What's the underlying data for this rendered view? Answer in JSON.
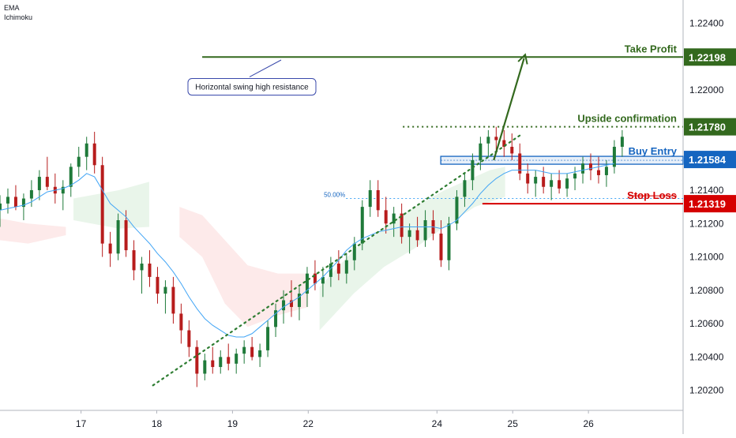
{
  "indicators": [
    "EMA",
    "Ichimoku"
  ],
  "colors": {
    "up": "#26a69a",
    "up_body": "#1f7a3a",
    "down": "#c2185b",
    "down_body": "#b71c1c",
    "ema": "#42a5f5",
    "cloud_green": "#4caf50",
    "cloud_red": "#ef5350",
    "target": "#33691e",
    "entry": "#1565c0",
    "stop": "#d50000",
    "trend": "#2e7d32"
  },
  "chart_data": {
    "type": "candlestick",
    "x_tick_labels": [
      {
        "label": "17",
        "x": 17
      },
      {
        "label": "18",
        "x": 18
      },
      {
        "label": "19",
        "x": 19
      },
      {
        "label": "22",
        "x": 20
      },
      {
        "label": "24",
        "x": 21.7
      },
      {
        "label": "25",
        "x": 22.7
      },
      {
        "label": "26",
        "x": 23.7
      }
    ],
    "y_tick_labels": [
      "1.20200",
      "1.20400",
      "1.20600",
      "1.20800",
      "1.21000",
      "1.21200",
      "1.21400",
      "1.22000",
      "1.22400"
    ],
    "y_ticks": [
      1.202,
      1.204,
      1.206,
      1.208,
      1.21,
      1.212,
      1.214,
      1.22,
      1.224
    ],
    "ylim": [
      1.2008,
      1.2254
    ],
    "xlim": [
      15.93,
      24.95
    ],
    "levels": [
      {
        "label": "Take Profit",
        "value": 1.22198,
        "price_label": "1.22198",
        "style": "solid",
        "x_from": 18.6,
        "x_to": 24.95
      },
      {
        "label": "Upside confirmation",
        "value": 1.2178,
        "price_label": "1.21780",
        "style": "dotted",
        "x_from": 21.25,
        "x_to": 24.95
      },
      {
        "label": "Buy Entry",
        "value": 1.21584,
        "price_label": "1.21584",
        "style": "zone",
        "x_from": 21.75,
        "x_to": 24.95
      },
      {
        "label": "Stop Loss",
        "value": 1.21319,
        "price_label": "1.21319",
        "style": "solid",
        "x_from": 22.3,
        "x_to": 24.95
      }
    ],
    "fib_label": "50.00%",
    "fib_level": 1.2135,
    "annotation": "Horizontal swing high resistance",
    "trendline": {
      "from": [
        17.95,
        1.2023
      ],
      "to": [
        22.8,
        1.2173
      ]
    },
    "ohlc": [
      [
        1.2128,
        1.2137,
        1.2118,
        1.2132
      ],
      [
        1.2132,
        1.2141,
        1.2126,
        1.2136
      ],
      [
        1.2136,
        1.2143,
        1.2128,
        1.213
      ],
      [
        1.213,
        1.2138,
        1.2122,
        1.2135
      ],
      [
        1.2135,
        1.2146,
        1.213,
        1.214
      ],
      [
        1.214,
        1.2152,
        1.2134,
        1.2148
      ],
      [
        1.2148,
        1.216,
        1.214,
        1.2142
      ],
      [
        1.2142,
        1.215,
        1.2132,
        1.2138
      ],
      [
        1.2138,
        1.2146,
        1.2128,
        1.2142
      ],
      [
        1.2142,
        1.2156,
        1.2136,
        1.2154
      ],
      [
        1.2154,
        1.2166,
        1.2148,
        1.216
      ],
      [
        1.216,
        1.2172,
        1.2152,
        1.2168
      ],
      [
        1.2168,
        1.2175,
        1.215,
        1.2155
      ],
      [
        1.2155,
        1.216,
        1.21,
        1.2108
      ],
      [
        1.2108,
        1.2115,
        1.2094,
        1.2102
      ],
      [
        1.2102,
        1.2126,
        1.2098,
        1.2122
      ],
      [
        1.2122,
        1.2128,
        1.21,
        1.2104
      ],
      [
        1.2104,
        1.211,
        1.2086,
        1.2092
      ],
      [
        1.2092,
        1.21,
        1.2078,
        1.2096
      ],
      [
        1.2096,
        1.2104,
        1.2082,
        1.2088
      ],
      [
        1.2088,
        1.2094,
        1.2072,
        1.2078
      ],
      [
        1.2078,
        1.2086,
        1.2066,
        1.2082
      ],
      [
        1.2082,
        1.2088,
        1.206,
        1.2066
      ],
      [
        1.2066,
        1.2072,
        1.2048,
        1.2056
      ],
      [
        1.2056,
        1.2062,
        1.204,
        1.2046
      ],
      [
        1.2046,
        1.205,
        1.2022,
        1.203
      ],
      [
        1.203,
        1.2042,
        1.2026,
        1.2038
      ],
      [
        1.2038,
        1.2046,
        1.203,
        1.2034
      ],
      [
        1.2034,
        1.2044,
        1.203,
        1.204
      ],
      [
        1.204,
        1.2048,
        1.2032,
        1.2036
      ],
      [
        1.2036,
        1.2045,
        1.203,
        1.2042
      ],
      [
        1.2042,
        1.205,
        1.2036,
        1.2046
      ],
      [
        1.2046,
        1.2052,
        1.2038,
        1.204
      ],
      [
        1.204,
        1.2048,
        1.2034,
        1.2044
      ],
      [
        1.2044,
        1.2062,
        1.204,
        1.2058
      ],
      [
        1.2058,
        1.2072,
        1.2052,
        1.2068
      ],
      [
        1.2068,
        1.208,
        1.206,
        1.2074
      ],
      [
        1.2074,
        1.2086,
        1.2064,
        1.207
      ],
      [
        1.207,
        1.2082,
        1.2062,
        1.2078
      ],
      [
        1.2078,
        1.2094,
        1.207,
        1.209
      ],
      [
        1.209,
        1.2098,
        1.208,
        1.2084
      ],
      [
        1.2084,
        1.2094,
        1.2076,
        1.2088
      ],
      [
        1.2088,
        1.21,
        1.2082,
        1.2096
      ],
      [
        1.2096,
        1.2104,
        1.2086,
        1.209
      ],
      [
        1.209,
        1.2102,
        1.2084,
        1.2098
      ],
      [
        1.2098,
        1.2112,
        1.2092,
        1.2108
      ],
      [
        1.2108,
        1.2134,
        1.2104,
        1.213
      ],
      [
        1.213,
        1.2146,
        1.2124,
        1.214
      ],
      [
        1.214,
        1.2146,
        1.2124,
        1.2128
      ],
      [
        1.2128,
        1.2136,
        1.2114,
        1.212
      ],
      [
        1.212,
        1.213,
        1.2112,
        1.2126
      ],
      [
        1.2126,
        1.2132,
        1.2108,
        1.2112
      ],
      [
        1.2112,
        1.212,
        1.2102,
        1.2116
      ],
      [
        1.2116,
        1.2124,
        1.2106,
        1.211
      ],
      [
        1.211,
        1.2128,
        1.2106,
        1.2122
      ],
      [
        1.2122,
        1.2128,
        1.211,
        1.2114
      ],
      [
        1.2114,
        1.2122,
        1.2094,
        1.2098
      ],
      [
        1.2098,
        1.2124,
        1.2092,
        1.212
      ],
      [
        1.212,
        1.214,
        1.2116,
        1.2136
      ],
      [
        1.2136,
        1.215,
        1.213,
        1.2146
      ],
      [
        1.2146,
        1.2162,
        1.214,
        1.2158
      ],
      [
        1.2158,
        1.2172,
        1.2152,
        1.2168
      ],
      [
        1.2168,
        1.2176,
        1.216,
        1.2172
      ],
      [
        1.2172,
        1.2178,
        1.2164,
        1.217
      ],
      [
        1.217,
        1.2176,
        1.216,
        1.2166
      ],
      [
        1.2166,
        1.2174,
        1.2158,
        1.2162
      ],
      [
        1.2162,
        1.2168,
        1.2146,
        1.215
      ],
      [
        1.215,
        1.2156,
        1.2138,
        1.2144
      ],
      [
        1.2144,
        1.2152,
        1.2136,
        1.2148
      ],
      [
        1.2148,
        1.2154,
        1.2138,
        1.2142
      ],
      [
        1.2142,
        1.215,
        1.2134,
        1.2146
      ],
      [
        1.2146,
        1.2152,
        1.2138,
        1.2141
      ],
      [
        1.2141,
        1.215,
        1.2136,
        1.2147
      ],
      [
        1.2147,
        1.2154,
        1.214,
        1.215
      ],
      [
        1.215,
        1.216,
        1.2144,
        1.2156
      ],
      [
        1.2156,
        1.2162,
        1.2146,
        1.2152
      ],
      [
        1.2152,
        1.216,
        1.2144,
        1.2149
      ],
      [
        1.2149,
        1.2158,
        1.2142,
        1.2154
      ],
      [
        1.2154,
        1.217,
        1.215,
        1.2166
      ],
      [
        1.2166,
        1.2176,
        1.216,
        1.2172
      ]
    ],
    "ema": [
      1.2128,
      1.2129,
      1.213,
      1.2131,
      1.2133,
      1.2136,
      1.2139,
      1.214,
      1.2141,
      1.2143,
      1.2146,
      1.215,
      1.2148,
      1.214,
      1.2132,
      1.2128,
      1.2124,
      1.2118,
      1.2113,
      1.2108,
      1.2102,
      1.2097,
      1.2091,
      1.2084,
      1.2076,
      1.2069,
      1.2063,
      1.2059,
      1.2056,
      1.2053,
      1.2052,
      1.2052,
      1.2054,
      1.2058,
      1.2062,
      1.2066,
      1.207,
      1.2073,
      1.2076,
      1.208,
      1.2084,
      1.2088,
      1.2093,
      1.2098,
      1.2104,
      1.2108,
      1.2111,
      1.2113,
      1.2115,
      1.2116,
      1.2117,
      1.2118,
      1.2118,
      1.2118,
      1.2118,
      1.2118,
      1.2117,
      1.2119,
      1.2122,
      1.2127,
      1.2132,
      1.2138,
      1.2143,
      1.2147,
      1.215,
      1.2152,
      1.2152,
      1.2152,
      1.2152,
      1.2151,
      1.215,
      1.215,
      1.215,
      1.2151,
      1.2152,
      1.2153,
      1.2154,
      1.2155,
      1.2156
    ]
  }
}
